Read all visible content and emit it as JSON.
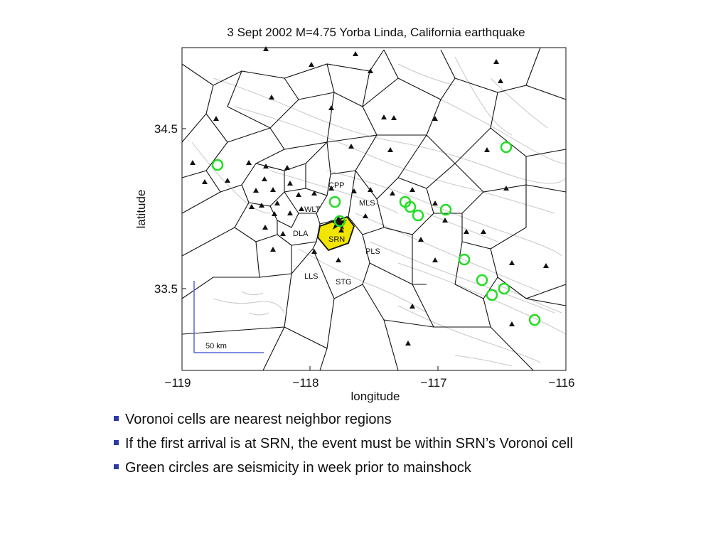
{
  "figure": {
    "title": "3 Sept 2002 M=4.75 Yorba Linda, California earthquake",
    "xlabel": "longitude",
    "ylabel": "latitude",
    "x_ticks": [
      "−119",
      "−118",
      "−117",
      "−116"
    ],
    "y_ticks": [
      "34.5",
      "33.5"
    ],
    "scale_bar_label": "50 km",
    "station_labels": [
      "CPP",
      "MLS",
      "WLT",
      "DLA",
      "SRN",
      "PLS",
      "LLS",
      "STG"
    ],
    "colors": {
      "highlight_cell": "#f2e500",
      "seismicity_circle": "#22dd22",
      "scale_bar": "#5566dd",
      "cell_edges": "#111111",
      "faults": "#c8c8c8"
    },
    "icons": [
      "station-triangle-icon",
      "epicenter-star-icon",
      "seismicity-circle-icon"
    ]
  },
  "bullets": [
    "Voronoi cells are nearest neighbor regions",
    "If the first arrival is at SRN, the event must be within SRN’s Voronoi cell",
    "Green circles are seismicity in week prior to mainshock"
  ]
}
